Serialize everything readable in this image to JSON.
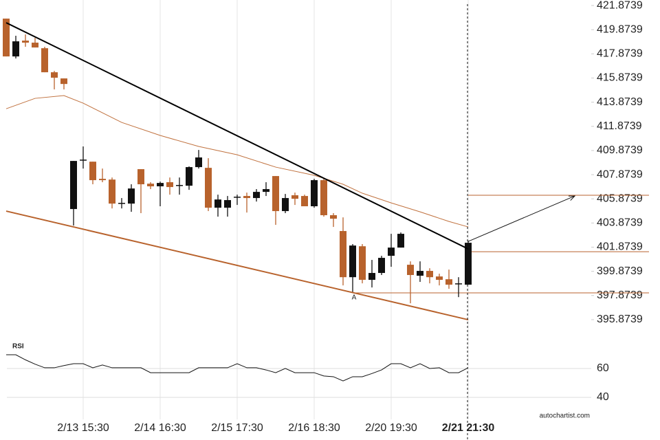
{
  "chart_data": {
    "type": "candlestick",
    "categories": [
      null,
      null,
      null,
      null,
      null,
      null,
      null,
      null,
      "2/13 15:30",
      null,
      null,
      null,
      null,
      null,
      null,
      null,
      "2/14 16:30",
      null,
      null,
      null,
      null,
      null,
      null,
      null,
      "2/15 17:30",
      null,
      null,
      null,
      null,
      null,
      null,
      null,
      "2/16 18:30",
      null,
      null,
      null,
      null,
      null,
      null,
      null,
      "2/20 19:30",
      null,
      null,
      null,
      null,
      null,
      null,
      null,
      "2/21 21:30"
    ],
    "open": [
      420.79,
      417.66,
      418.97,
      418.8,
      418.34,
      416.35,
      415.84,
      405.03,
      409.07,
      408.95,
      407.53,
      407.47,
      405.48,
      405.48,
      408.33,
      407.13,
      406.91,
      407.25,
      406.96,
      406.96,
      408.5,
      408.44,
      405.14,
      405.14,
      405.99,
      406.11,
      405.94,
      406.45,
      407.76,
      404.86,
      406.17,
      406.11,
      405.26,
      407.42,
      404.52,
      403.21,
      399.39,
      401.95,
      399.17,
      399.74,
      401.16,
      401.84,
      400.42,
      399.51,
      399.91,
      399.45,
      399.22,
      398.83,
      398.77
    ],
    "high": [
      420.79,
      419.37,
      419.48,
      419.2,
      418.46,
      416.46,
      415.84,
      409.01,
      410.21,
      408.95,
      408.38,
      407.64,
      405.94,
      407.08,
      408.33,
      407.25,
      407.3,
      407.64,
      407.64,
      408.56,
      409.92,
      409.24,
      406.22,
      406.11,
      406.22,
      406.39,
      406.68,
      407.25,
      407.76,
      406.28,
      406.39,
      406.22,
      407.53,
      407.53,
      404.69,
      404.34,
      402.13,
      402.13,
      400.82,
      401.16,
      402.98,
      403.09,
      400.7,
      400.7,
      400.13,
      399.68,
      400.02,
      399.39,
      402.41
    ],
    "low": [
      417.66,
      417.49,
      418.46,
      418.4,
      416.35,
      414.93,
      414.93,
      403.66,
      408.38,
      407.08,
      407.25,
      405.08,
      405.08,
      404.8,
      404.69,
      406.68,
      405.26,
      406.22,
      406.22,
      406.62,
      408.38,
      404.86,
      404.4,
      404.4,
      405.37,
      404.74,
      405.65,
      406.11,
      403.72,
      404.69,
      405.37,
      405.26,
      405.14,
      404.4,
      403.55,
      398.71,
      398.14,
      398.88,
      398.54,
      399.57,
      400.25,
      401.84,
      397.23,
      399.0,
      398.88,
      398.71,
      398.43,
      397.74,
      398.77
    ],
    "close": [
      417.66,
      418.91,
      418.8,
      418.4,
      416.35,
      415.9,
      415.38,
      409.01,
      409.12,
      407.42,
      407.42,
      405.48,
      405.54,
      406.73,
      407.08,
      406.91,
      407.19,
      406.85,
      407.02,
      408.5,
      409.3,
      405.14,
      405.82,
      405.77,
      406.05,
      405.94,
      406.45,
      406.68,
      404.86,
      405.94,
      405.88,
      405.26,
      407.42,
      404.52,
      404.23,
      399.39,
      402.01,
      399.17,
      399.74,
      400.99,
      401.84,
      402.98,
      399.57,
      399.91,
      399.39,
      399.17,
      398.77,
      398.88,
      402.24
    ],
    "up_color": "#111111",
    "down_color": "#b8622c",
    "ylim": [
      394.45,
      422.33
    ],
    "yticks": [
      421.8739,
      419.8739,
      417.8739,
      415.8739,
      413.8739,
      411.8739,
      409.8739,
      407.8739,
      405.8739,
      403.8739,
      401.8739,
      399.8739,
      397.8739,
      395.8739
    ],
    "trendlines": [
      {
        "x": [
          0,
          48
        ],
        "values": [
          420.45,
          401.73
        ],
        "color": "#000000"
      },
      {
        "x": [
          0,
          48
        ],
        "values": [
          404.86,
          395.87
        ],
        "color": "#b8622c"
      }
    ],
    "moving_average": {
      "x": [
        0,
        3,
        6,
        8,
        12,
        16,
        20,
        24,
        28,
        32,
        35,
        37,
        40,
        43,
        46,
        48
      ],
      "values": [
        413.33,
        414.19,
        414.42,
        413.79,
        412.2,
        411.12,
        410.21,
        409.52,
        408.5,
        407.82,
        407.08,
        406.34,
        405.54,
        404.8,
        404.0,
        403.55
      ],
      "color": "#c0713e"
    },
    "levels": [
      {
        "value": 406.17,
        "from": 48
      },
      {
        "value": 401.5,
        "from": 48
      },
      {
        "value": 398.09,
        "from": 36
      }
    ],
    "projection": {
      "x": [
        48,
        59.07
      ],
      "values": [
        402.35,
        406.11
      ]
    },
    "annotation": {
      "text": "A",
      "x": 36,
      "value": 397.69
    },
    "rsi": {
      "title": "RSI",
      "ylim": [
        29.5,
        77.14
      ],
      "yticks": [
        60,
        40
      ],
      "values": [
        69.5,
        69.5,
        66,
        63,
        60.5,
        60.5,
        62,
        63.3,
        63.3,
        60.5,
        62.4,
        60.5,
        60.5,
        60.5,
        60.5,
        57.1,
        57.1,
        57.1,
        57.1,
        57.1,
        60.5,
        60.5,
        60.5,
        60.5,
        63.3,
        60.5,
        60.5,
        59.0,
        57.1,
        60,
        57.1,
        57.1,
        57.1,
        54.8,
        54.3,
        51.4,
        54.3,
        54.3,
        56.5,
        59.0,
        63.3,
        63.3,
        60.5,
        63.3,
        60,
        60.5,
        57.1,
        57.1,
        60.5
      ]
    },
    "source": "autochartist.com"
  }
}
